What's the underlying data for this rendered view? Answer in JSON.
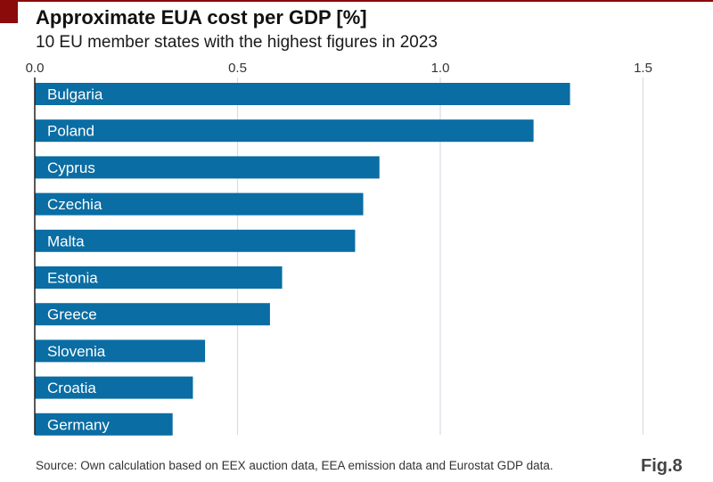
{
  "header": {
    "title": "Approximate EUA cost per GDP [%]",
    "subtitle": "10 EU member states with the highest figures in 2023"
  },
  "footer": {
    "source": "Source: Own calculation based on EEX auction data, EEA emission data and Eurostat GDP data.",
    "figure_label": "Fig.8"
  },
  "colors": {
    "bar": "#0A6DA3",
    "accent": "#8B0A0A",
    "grid": "#d9dde2",
    "axis": "#222222"
  },
  "chart_data": {
    "type": "bar",
    "orientation": "horizontal",
    "title": "Approximate EUA cost per GDP [%]",
    "subtitle": "10 EU member states with the highest figures in 2023",
    "xlabel": "",
    "ylabel": "",
    "xlim": [
      0,
      1.5
    ],
    "xticks": [
      0.0,
      0.5,
      1.0,
      1.5
    ],
    "xtick_labels": [
      "0.0",
      "0.5",
      "1.0",
      "1.5"
    ],
    "xaxis_position": "top",
    "grid": true,
    "legend": "none",
    "categories": [
      "Bulgaria",
      "Poland",
      "Cyprus",
      "Czechia",
      "Malta",
      "Estonia",
      "Greece",
      "Slovenia",
      "Croatia",
      "Germany"
    ],
    "values": [
      1.32,
      1.23,
      0.85,
      0.81,
      0.79,
      0.61,
      0.58,
      0.42,
      0.39,
      0.34
    ],
    "bar_labels_inside": true
  }
}
